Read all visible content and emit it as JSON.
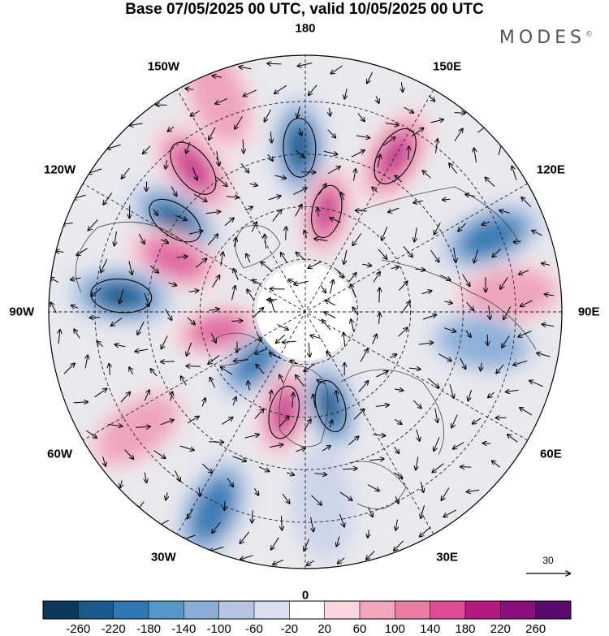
{
  "title": "Base 07/05/2025 00 UTC, valid 10/05/2025 00 UTC",
  "brand": "MODES",
  "brand_mark": "©",
  "longitudes": [
    "180",
    "150E",
    "120E",
    "90E",
    "60E",
    "30E",
    "0",
    "30W",
    "60W",
    "90W",
    "120W",
    "150W"
  ],
  "colorbar": {
    "ticks": [
      "-260",
      "-220",
      "-180",
      "-140",
      "-100",
      "-60",
      "-20",
      "20",
      "60",
      "100",
      "140",
      "180",
      "220",
      "260"
    ],
    "colors": [
      "#0d3a5c",
      "#1a5a8a",
      "#2f78b4",
      "#5598c8",
      "#8aaed6",
      "#b8c6e3",
      "#dadff0",
      "#ffffff",
      "#f9d5dc",
      "#f1a7bb",
      "#ea7ea5",
      "#dd4c95",
      "#b6197f",
      "#8a0f7c",
      "#5a0b6e"
    ]
  },
  "wind_scale": {
    "value": "30"
  },
  "anomaly_field": {
    "colors": {
      "neg3": "#1f5a89",
      "neg2": "#3b7db5",
      "neg1": "#8fb1d8",
      "neg0": "#ccd5ea",
      "pos0": "#f7d6dd",
      "pos1": "#eea4bd",
      "pos2": "#e06aa4",
      "pos3": "#c23d8f"
    },
    "centers": [
      {
        "lon": -142,
        "r": 0.71,
        "v": 3
      },
      {
        "lon": -158,
        "r": 0.9,
        "v": 1
      },
      {
        "lon": -178,
        "r": 0.64,
        "v": -3
      },
      {
        "lon": 150,
        "r": 0.7,
        "v": 3
      },
      {
        "lon": -125,
        "r": 0.62,
        "v": -3
      },
      {
        "lon": -112,
        "r": 0.55,
        "v": 2
      },
      {
        "lon": -95,
        "r": 0.72,
        "v": -3
      },
      {
        "lon": -78,
        "r": 0.35,
        "v": 2
      },
      {
        "lon": -45,
        "r": 0.28,
        "v": -2
      },
      {
        "lon": -12,
        "r": 0.4,
        "v": 3
      },
      {
        "lon": 15,
        "r": 0.38,
        "v": -3
      },
      {
        "lon": 168,
        "r": 0.4,
        "v": 3
      },
      {
        "lon": 112,
        "r": 0.78,
        "v": -2
      },
      {
        "lon": 95,
        "r": 0.8,
        "v": 1
      },
      {
        "lon": 80,
        "r": 0.7,
        "v": -1
      },
      {
        "lon": -25,
        "r": 0.85,
        "v": -2
      },
      {
        "lon": -55,
        "r": 0.8,
        "v": 1
      },
      {
        "lon": 5,
        "r": 0.75,
        "v": 0
      }
    ]
  }
}
